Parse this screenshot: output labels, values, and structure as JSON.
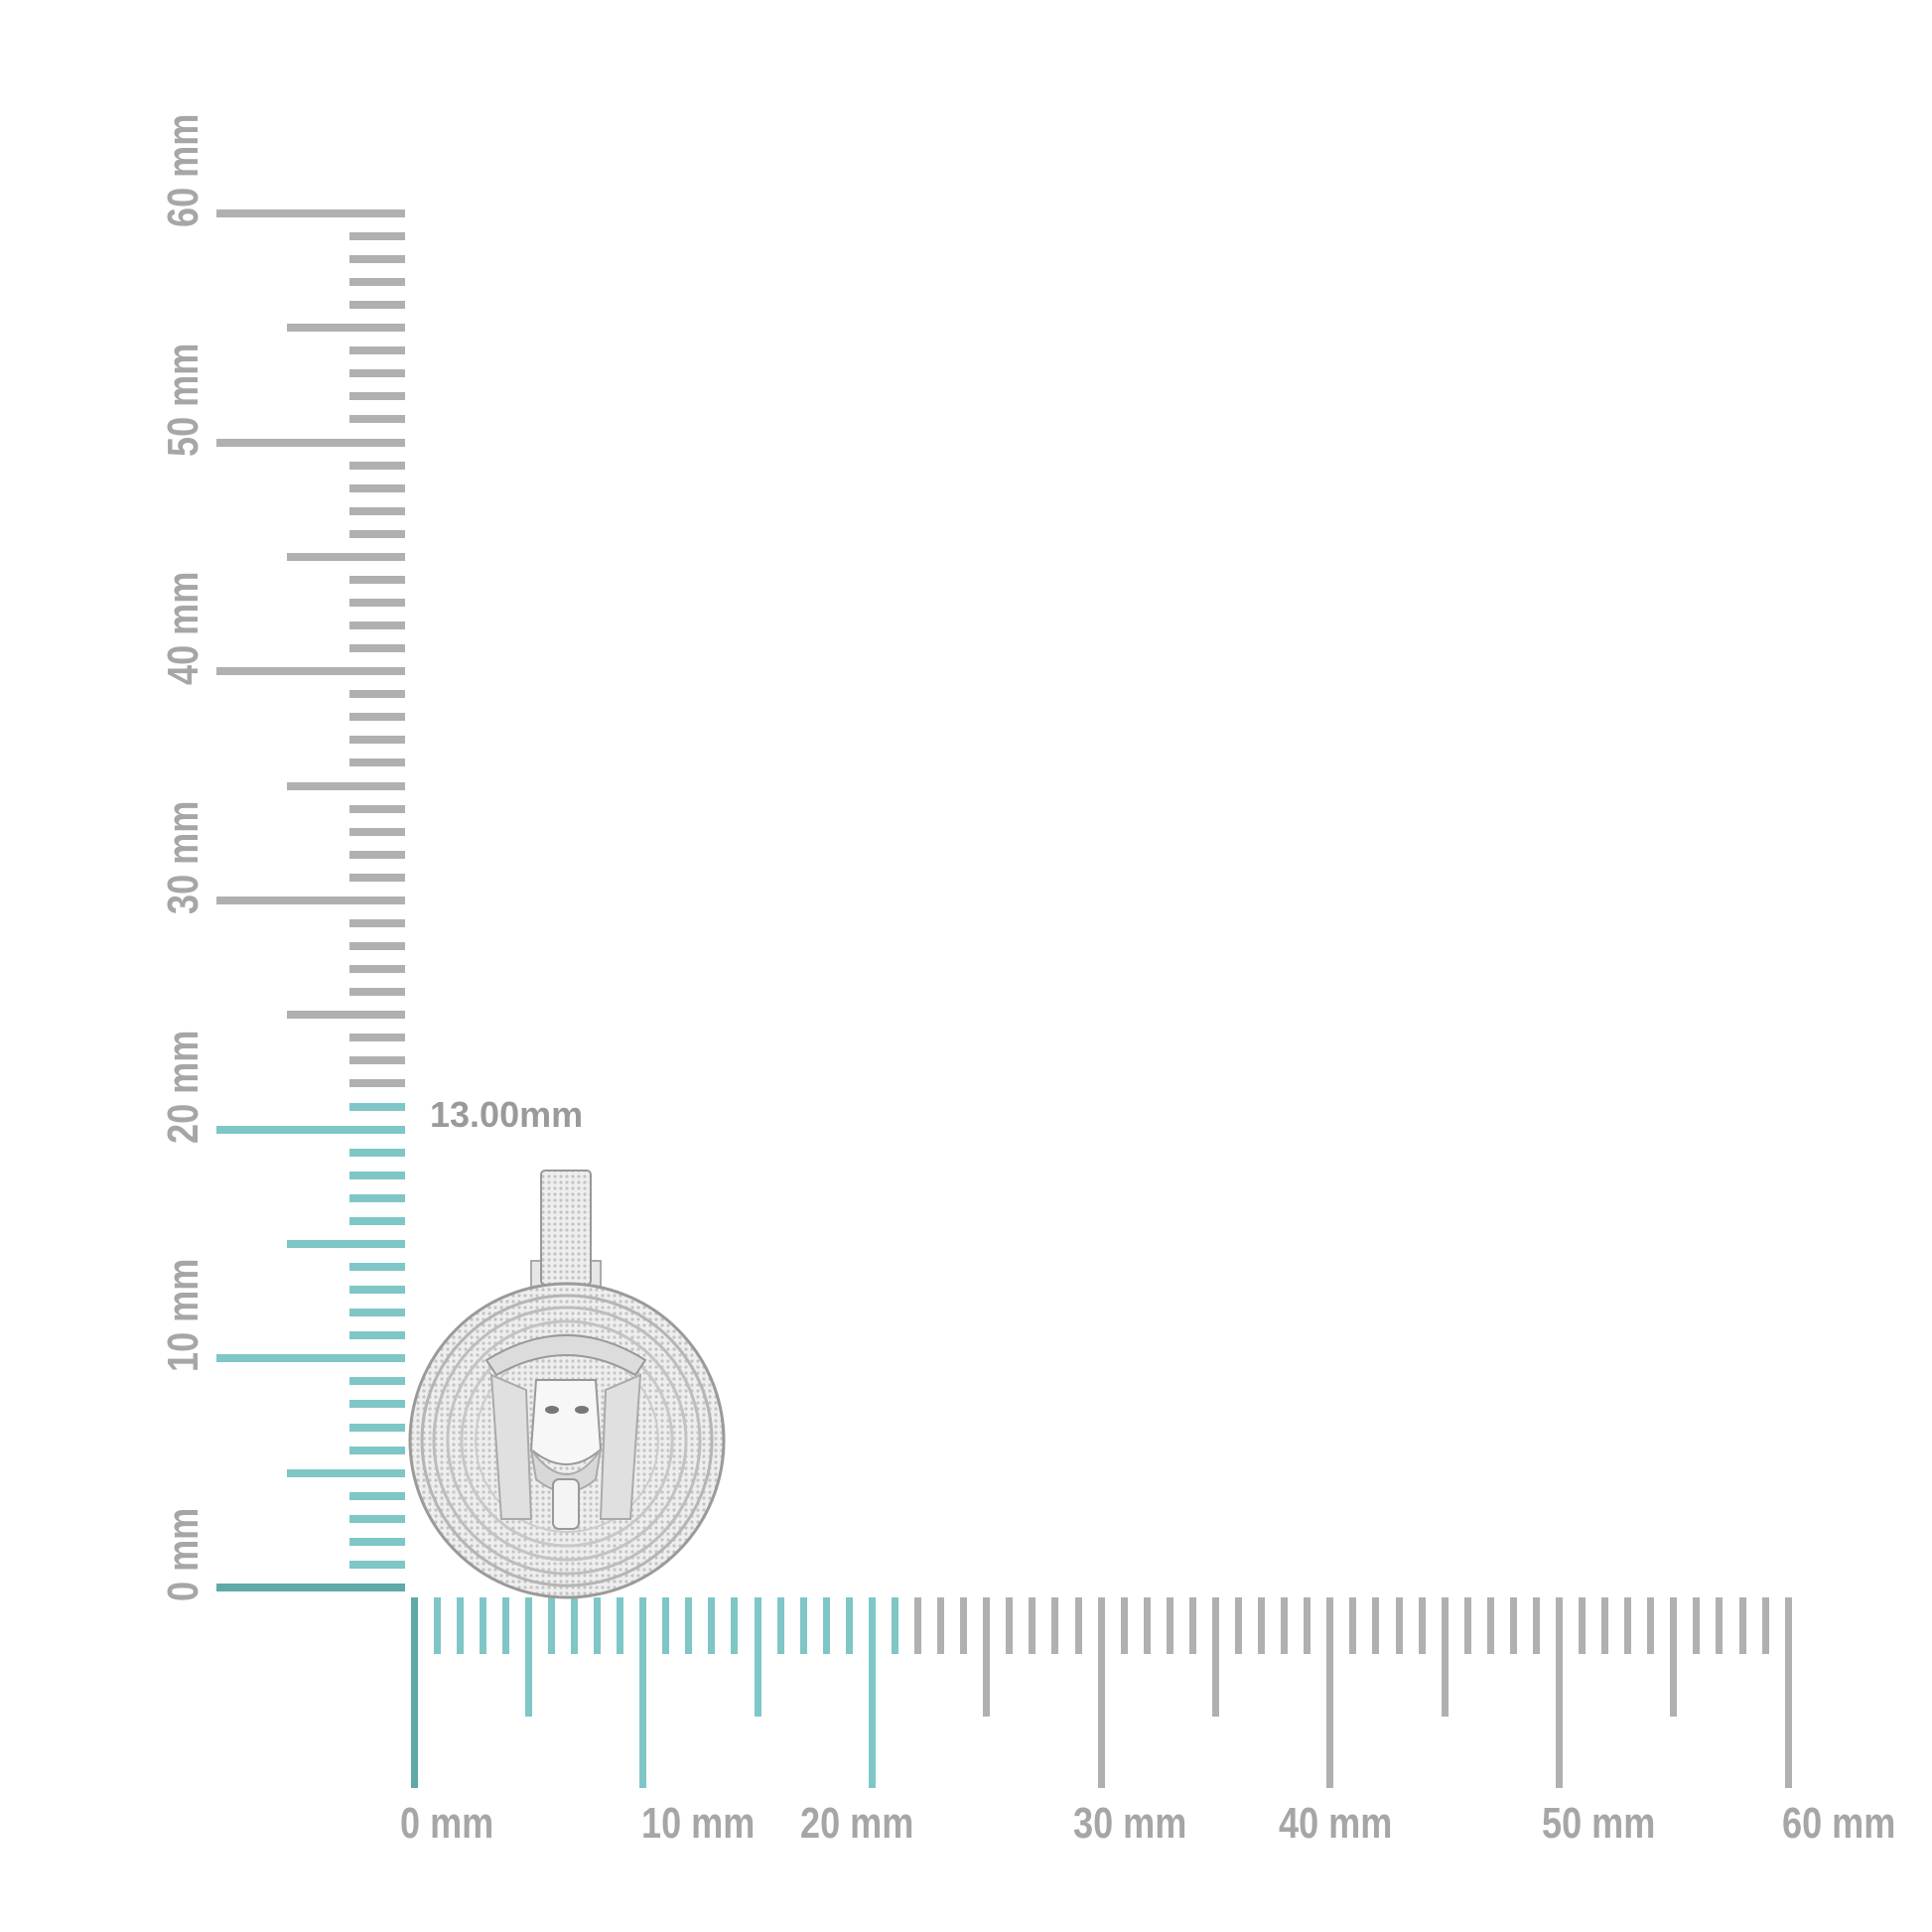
{
  "measurement_label": "13.00mm",
  "x_axis": {
    "labels": [
      "0 mm",
      "10 mm",
      "20 mm",
      "30 mm",
      "40 mm",
      "50 mm",
      "60 mm"
    ],
    "max_mm": 60,
    "highlight_to_mm": 21
  },
  "y_axis": {
    "labels": [
      "0 mm",
      "10 mm",
      "20 mm",
      "30 mm",
      "40 mm",
      "50 mm",
      "60 mm"
    ],
    "max_mm": 60,
    "highlight_to_mm": 21
  },
  "colors": {
    "ruler": "#b0b0b0",
    "highlight": "#7fc6c6",
    "zero_line": "#5faaa8",
    "label": "#a6a6a6"
  },
  "product_image": "round-pendant-with-face-relief"
}
